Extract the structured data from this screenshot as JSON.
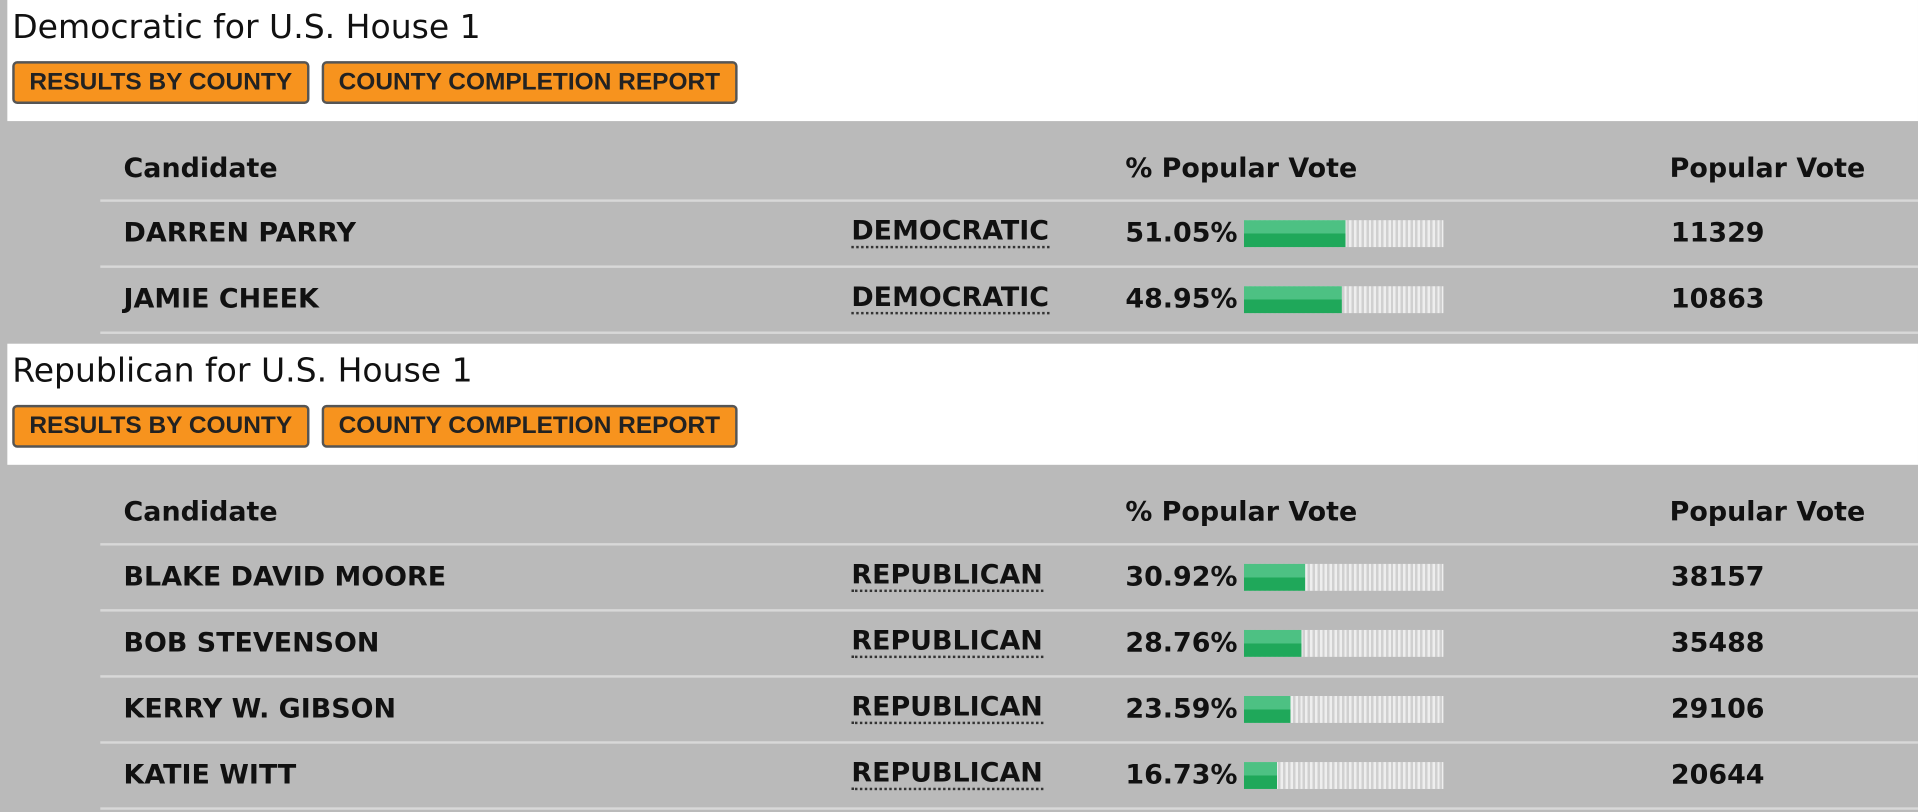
{
  "sections": [
    {
      "title": "Democratic for U.S. House 1",
      "buttons": [
        "RESULTS BY COUNTY",
        "COUNTY COMPLETION REPORT"
      ],
      "table": {
        "headers": {
          "candidate": "Candidate",
          "percent": "% Popular Vote",
          "votes": "Popular Vote"
        },
        "rows": [
          {
            "name": "DARREN PARRY",
            "party": "DEMOCRATIC",
            "pct": 51.05,
            "pct_label": "51.05%",
            "votes": 11329
          },
          {
            "name": "JAMIE CHEEK",
            "party": "DEMOCRATIC",
            "pct": 48.95,
            "pct_label": "48.95%",
            "votes": 10863
          }
        ]
      }
    },
    {
      "title": "Republican for U.S. House 1",
      "buttons": [
        "RESULTS BY COUNTY",
        "COUNTY COMPLETION REPORT"
      ],
      "table": {
        "headers": {
          "candidate": "Candidate",
          "percent": "% Popular Vote",
          "votes": "Popular Vote"
        },
        "rows": [
          {
            "name": "BLAKE DAVID MOORE",
            "party": "REPUBLICAN",
            "pct": 30.92,
            "pct_label": "30.92%",
            "votes": 38157
          },
          {
            "name": "BOB STEVENSON",
            "party": "REPUBLICAN",
            "pct": 28.76,
            "pct_label": "28.76%",
            "votes": 35488
          },
          {
            "name": "KERRY W. GIBSON",
            "party": "REPUBLICAN",
            "pct": 23.59,
            "pct_label": "23.59%",
            "votes": 29106
          },
          {
            "name": "KATIE WITT",
            "party": "REPUBLICAN",
            "pct": 16.73,
            "pct_label": "16.73%",
            "votes": 20644
          }
        ]
      }
    }
  ]
}
